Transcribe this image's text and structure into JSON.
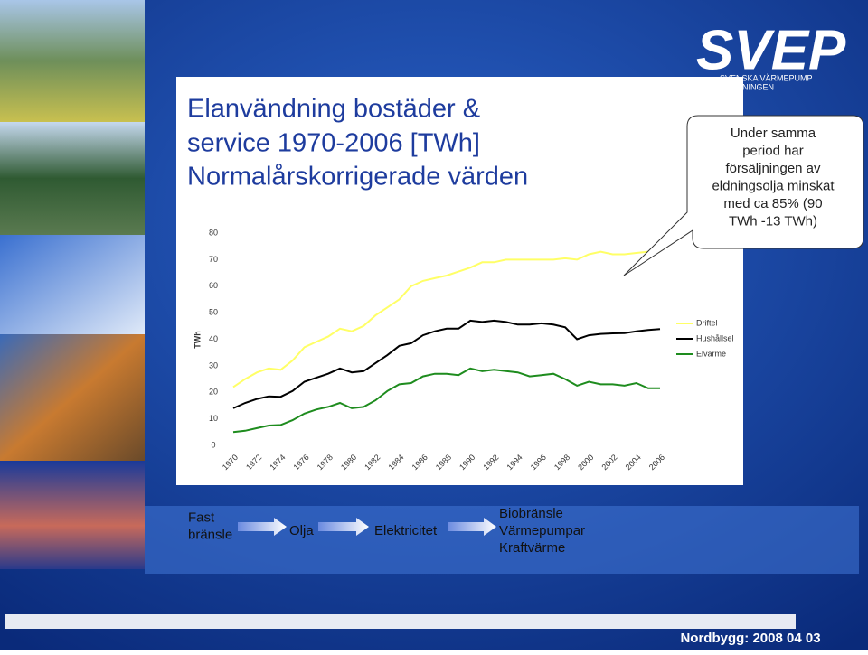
{
  "chart_data": {
    "type": "line",
    "y_label": "TWh",
    "x": [
      1970,
      1971,
      1972,
      1973,
      1974,
      1975,
      1976,
      1977,
      1978,
      1979,
      1980,
      1981,
      1982,
      1983,
      1984,
      1985,
      1986,
      1987,
      1988,
      1989,
      1990,
      1991,
      1992,
      1993,
      1994,
      1995,
      1996,
      1997,
      1998,
      1999,
      2000,
      2001,
      2002,
      2003,
      2004,
      2005,
      2006
    ],
    "xlim": [
      1970,
      2006
    ],
    "xticks": [
      1970,
      1972,
      1974,
      1976,
      1978,
      1980,
      1982,
      1984,
      1986,
      1988,
      1990,
      1992,
      1994,
      1996,
      1998,
      2000,
      2002,
      2004,
      2006
    ],
    "ylim": [
      0,
      80
    ],
    "yticks": [
      0,
      10,
      20,
      30,
      40,
      50,
      60,
      70,
      80
    ],
    "legend": "right",
    "series": [
      {
        "name": "Driftel",
        "color": "#ffff66",
        "values": [
          22,
          25,
          27.5,
          29,
          28.5,
          32,
          37,
          39,
          41,
          44,
          43,
          45,
          49,
          52,
          55,
          60,
          62,
          63,
          64,
          65.5,
          67,
          69,
          69,
          70,
          70,
          70,
          70,
          70,
          70.5,
          70,
          72,
          73,
          72,
          72,
          72.5,
          73,
          73
        ]
      },
      {
        "name": "Hushållsel",
        "color": "#000000",
        "values": [
          14,
          16,
          17.5,
          18.5,
          18.3,
          20.5,
          24,
          25.5,
          27,
          29,
          27.5,
          28,
          31,
          34,
          37.5,
          38.5,
          41.5,
          43,
          44,
          44,
          47,
          46.5,
          47,
          46.5,
          45.5,
          45.5,
          46,
          45.5,
          44.5,
          40,
          41.5,
          42,
          42.2,
          42.3,
          43,
          43.5,
          43.8
        ]
      },
      {
        "name": "Elvärme",
        "color": "#1e8c1e",
        "values": [
          5,
          5.5,
          6.5,
          7.5,
          7.7,
          9.5,
          12,
          13.5,
          14.5,
          16,
          14,
          14.5,
          17,
          20.5,
          23,
          23.5,
          26,
          27,
          27,
          26.5,
          29,
          28,
          28.5,
          28,
          27.5,
          26,
          26.5,
          27,
          25,
          22.5,
          24,
          23,
          23,
          22.5,
          23.5,
          21.5,
          21.5
        ]
      }
    ]
  },
  "title": [
    "Elanvändning bostäder &",
    "service 1970-2006 [TWh]",
    "Normalårskorrigerade värden"
  ],
  "logo": {
    "name": "SVEP",
    "sub": [
      "SVENSKA VÄRMEPUMP",
      "FÖRENINGEN"
    ]
  },
  "callout": [
    "Under samma",
    "period har",
    "försäljningen av",
    "eldningsolja minskat",
    "med ca 85% (90",
    "TWh -13 TWh)"
  ],
  "flow": [
    [
      "Fast",
      "bränsle"
    ],
    [
      "Olja"
    ],
    [
      "Elektricitet"
    ],
    [
      "Biobränsle",
      "Värmepumpar",
      "Kraftvärme"
    ]
  ],
  "footer": "Nordbygg:  2008 04 03"
}
